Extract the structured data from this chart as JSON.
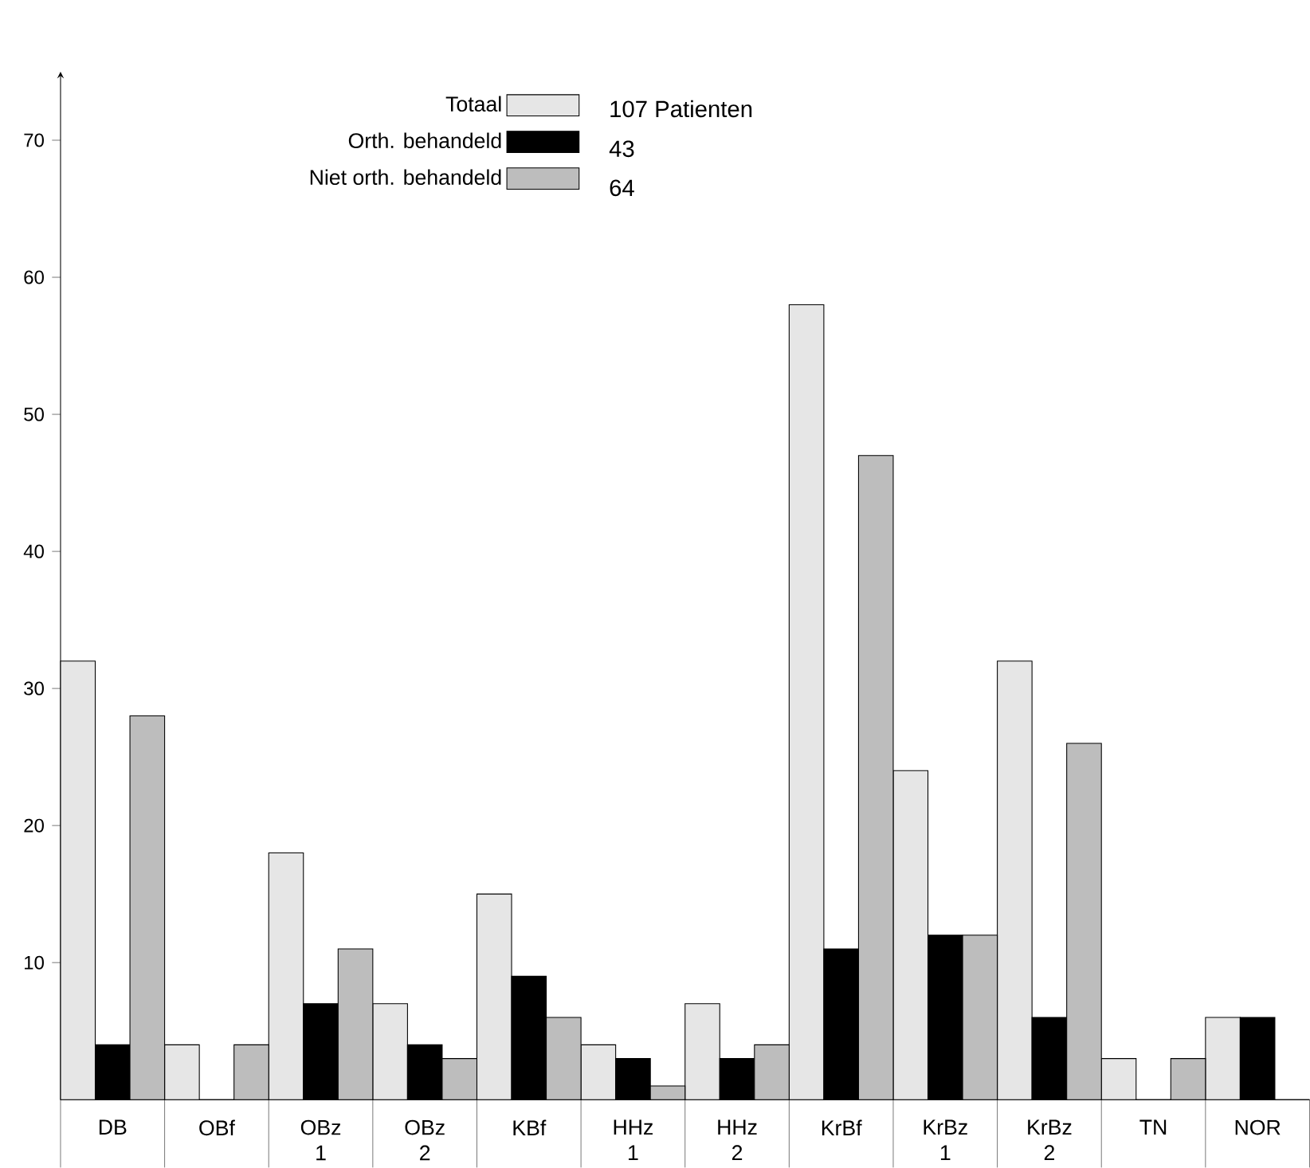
{
  "chart_data": {
    "type": "bar",
    "categories": [
      "DB",
      "OBf",
      "OBz 1",
      "OBz 2",
      "KBf",
      "HHz 1",
      "HHz 2",
      "KrBf",
      "KrBz 1",
      "KrBz 2",
      "TN",
      "NOR"
    ],
    "series": [
      {
        "name": "Totaal",
        "color": "#e6e6e6",
        "values": [
          32,
          4,
          18,
          7,
          15,
          4,
          7,
          58,
          24,
          32,
          3,
          6
        ]
      },
      {
        "name": "Orth. behandeld",
        "color": "#000000",
        "values": [
          4,
          0,
          7,
          4,
          9,
          3,
          3,
          11,
          12,
          6,
          0,
          6
        ]
      },
      {
        "name": "Niet orth. behandeld",
        "color": "#bdbdbd",
        "values": [
          28,
          4,
          11,
          3,
          6,
          1,
          4,
          47,
          12,
          26,
          3,
          0
        ]
      }
    ],
    "annotations": [
      "107 Patienten",
      "43",
      "64"
    ],
    "ylim": [
      0,
      75
    ],
    "yticks": [
      10,
      20,
      30,
      40,
      50,
      60,
      70
    ],
    "legend": "top left",
    "grid": false
  }
}
